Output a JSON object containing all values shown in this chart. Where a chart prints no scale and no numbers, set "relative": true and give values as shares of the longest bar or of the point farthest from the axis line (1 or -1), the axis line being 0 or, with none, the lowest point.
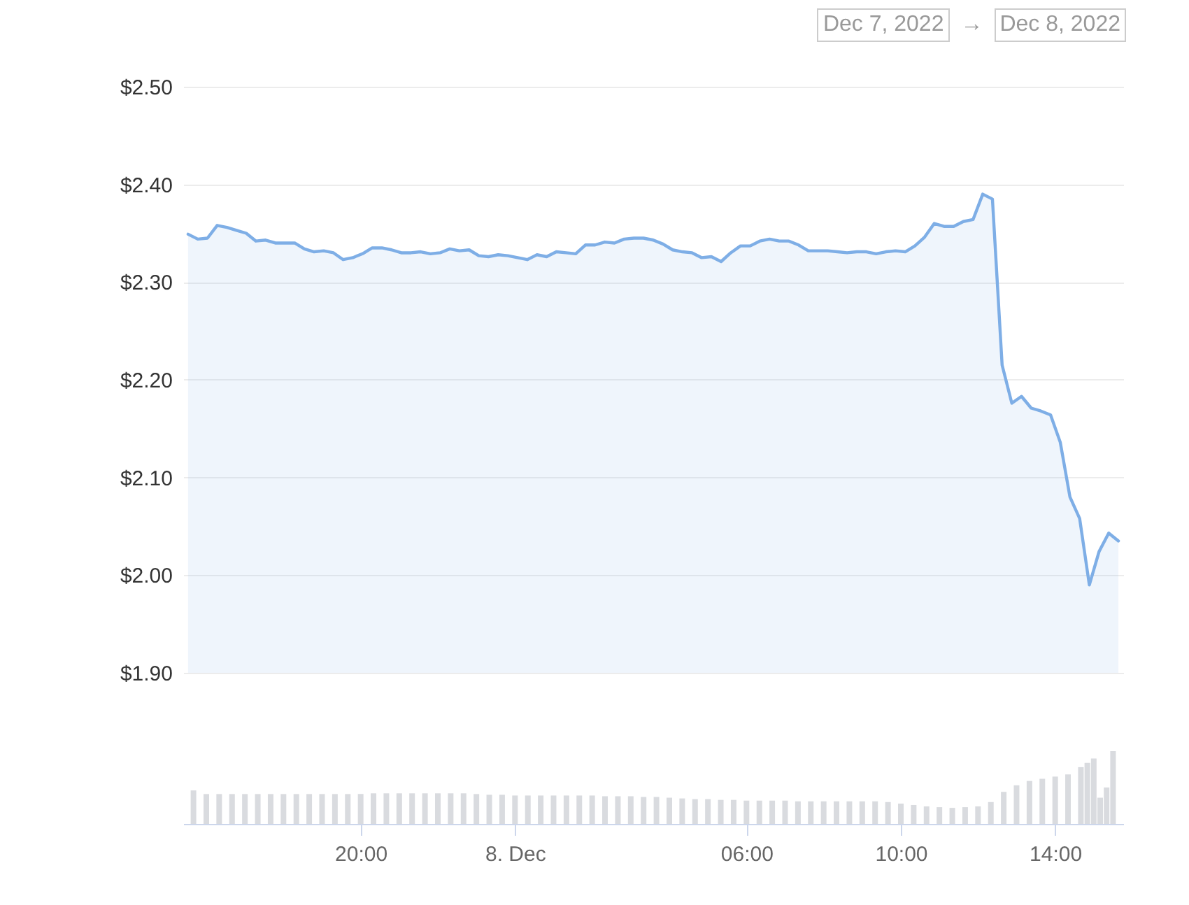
{
  "chart_data": [
    {
      "type": "area",
      "annotations": [
        "Dec 7, 2022",
        "→",
        "Dec 8, 2022"
      ],
      "categories": [
        null,
        null,
        null,
        null,
        null,
        null,
        null,
        null,
        null,
        null,
        null,
        null,
        null,
        null,
        null,
        null,
        null,
        null,
        null,
        null,
        null,
        null,
        null,
        null,
        null,
        null,
        null,
        null,
        null,
        null,
        null,
        null,
        null,
        null,
        null,
        null,
        null,
        null,
        null,
        null,
        null,
        null,
        null,
        null,
        null,
        null,
        null,
        null,
        null,
        null,
        null,
        null,
        null,
        null,
        null,
        null,
        null,
        null,
        null,
        null,
        null,
        null,
        null,
        null,
        null,
        null,
        null,
        null,
        null,
        null,
        null,
        null,
        null,
        null,
        null,
        null,
        null,
        null,
        null,
        null,
        null,
        null,
        null,
        null,
        null,
        null,
        null,
        null,
        null,
        null,
        null,
        null,
        null,
        null,
        null,
        null,
        null
      ],
      "series": [
        {
          "color": "#7eaee6",
          "values": [
            2.349,
            2.344,
            2.345,
            2.358,
            2.356,
            2.353,
            2.35,
            2.342,
            2.343,
            2.34,
            2.34,
            2.34,
            2.334,
            2.331,
            2.332,
            2.33,
            2.323,
            2.325,
            2.329,
            2.335,
            2.335,
            2.333,
            2.33,
            2.33,
            2.331,
            2.329,
            2.33,
            2.334,
            2.332,
            2.333,
            2.327,
            2.326,
            2.328,
            2.327,
            2.325,
            2.323,
            2.328,
            2.326,
            2.331,
            2.33,
            2.329,
            2.338,
            2.338,
            2.341,
            2.34,
            2.344,
            2.345,
            2.345,
            2.343,
            2.339,
            2.333,
            2.331,
            2.33,
            2.325,
            2.326,
            2.321,
            2.33,
            2.337,
            2.337,
            2.342,
            2.344,
            2.342,
            2.342,
            2.338,
            2.332,
            2.332,
            2.332,
            2.331,
            2.33,
            2.331,
            2.331,
            2.329,
            2.331,
            2.332,
            2.331,
            2.337,
            2.346,
            2.36,
            2.357,
            2.357,
            2.362,
            2.364,
            2.39,
            2.385,
            2.215,
            2.176,
            2.183,
            2.171,
            2.168,
            2.164,
            2.136,
            2.08,
            2.058,
            1.99,
            2.024,
            2.043,
            2.035
          ]
        }
      ],
      "ylim": [
        1.9,
        2.5
      ],
      "yticks": [
        {
          "value": 1.9,
          "label": "$1.90"
        },
        {
          "value": 2.0,
          "label": "$2.00"
        },
        {
          "value": 2.1,
          "label": "$2.10"
        },
        {
          "value": 2.2,
          "label": "$2.20"
        },
        {
          "value": 2.3,
          "label": "$2.30"
        },
        {
          "value": 2.4,
          "label": "$2.40"
        },
        {
          "value": 2.5,
          "label": "$2.50"
        }
      ],
      "grid": "y",
      "tick_labels": "y"
    },
    {
      "type": "bar",
      "relative": true,
      "x": [
        "2022-12-07T15:40",
        "2022-12-07T16:00",
        "2022-12-07T16:20",
        "2022-12-07T16:40",
        "2022-12-07T17:00",
        "2022-12-07T17:20",
        "2022-12-07T17:40",
        "2022-12-07T18:00",
        "2022-12-07T18:20",
        "2022-12-07T18:40",
        "2022-12-07T19:00",
        "2022-12-07T19:20",
        "2022-12-07T19:40",
        "2022-12-07T20:00",
        "2022-12-07T20:20",
        "2022-12-07T20:40",
        "2022-12-07T21:00",
        "2022-12-07T21:20",
        "2022-12-07T21:40",
        "2022-12-07T22:00",
        "2022-12-07T22:20",
        "2022-12-07T22:40",
        "2022-12-07T23:00",
        "2022-12-07T23:20",
        "2022-12-07T23:40",
        "2022-12-08T00:00",
        "2022-12-08T00:20",
        "2022-12-08T00:40",
        "2022-12-08T01:00",
        "2022-12-08T01:20",
        "2022-12-08T01:40",
        "2022-12-08T02:00",
        "2022-12-08T02:20",
        "2022-12-08T02:40",
        "2022-12-08T03:00",
        "2022-12-08T03:20",
        "2022-12-08T03:40",
        "2022-12-08T04:00",
        "2022-12-08T04:20",
        "2022-12-08T04:40",
        "2022-12-08T05:00",
        "2022-12-08T05:20",
        "2022-12-08T05:40",
        "2022-12-08T06:00",
        "2022-12-08T06:20",
        "2022-12-08T06:40",
        "2022-12-08T07:00",
        "2022-12-08T07:20",
        "2022-12-08T07:40",
        "2022-12-08T08:00",
        "2022-12-08T08:20",
        "2022-12-08T08:40",
        "2022-12-08T09:00",
        "2022-12-08T09:20",
        "2022-12-08T09:40",
        "2022-12-08T10:00",
        "2022-12-08T10:20",
        "2022-12-08T10:40",
        "2022-12-08T11:00",
        "2022-12-08T11:20",
        "2022-12-08T11:40",
        "2022-12-08T12:00",
        "2022-12-08T12:20",
        "2022-12-08T12:40",
        "2022-12-08T13:00",
        "2022-12-08T13:20",
        "2022-12-08T13:40",
        "2022-12-08T14:00",
        "2022-12-08T14:20",
        "2022-12-08T14:40",
        "2022-12-08T14:50",
        "2022-12-08T15:00",
        "2022-12-08T15:10",
        "2022-12-08T15:20",
        "2022-12-08T15:30"
      ],
      "series": [
        {
          "color": "#d9dbdf",
          "values": [
            0.46,
            0.41,
            0.41,
            0.41,
            0.41,
            0.41,
            0.41,
            0.41,
            0.41,
            0.41,
            0.41,
            0.41,
            0.41,
            0.41,
            0.42,
            0.42,
            0.42,
            0.42,
            0.42,
            0.42,
            0.42,
            0.42,
            0.41,
            0.4,
            0.4,
            0.39,
            0.39,
            0.39,
            0.39,
            0.39,
            0.39,
            0.39,
            0.38,
            0.38,
            0.38,
            0.37,
            0.37,
            0.36,
            0.35,
            0.34,
            0.34,
            0.33,
            0.33,
            0.32,
            0.32,
            0.32,
            0.32,
            0.31,
            0.31,
            0.31,
            0.31,
            0.31,
            0.31,
            0.31,
            0.3,
            0.28,
            0.26,
            0.24,
            0.23,
            0.22,
            0.23,
            0.24,
            0.3,
            0.44,
            0.53,
            0.59,
            0.62,
            0.65,
            0.68,
            0.78,
            0.84,
            0.9,
            0.36,
            0.5,
            1
          ]
        }
      ],
      "xlim": [
        "2022-12-07T15:35",
        "2022-12-08T15:35"
      ],
      "xticks": [
        {
          "value": "2022-12-07T20:00",
          "label": "20:00"
        },
        {
          "value": "2022-12-08T00:00",
          "label": "8. Dec"
        },
        {
          "value": "2022-12-08T06:00",
          "label": "06:00"
        },
        {
          "value": "2022-12-08T10:00",
          "label": "10:00"
        },
        {
          "value": "2022-12-08T14:00",
          "label": "14:00"
        }
      ],
      "tick_labels": "x"
    }
  ]
}
